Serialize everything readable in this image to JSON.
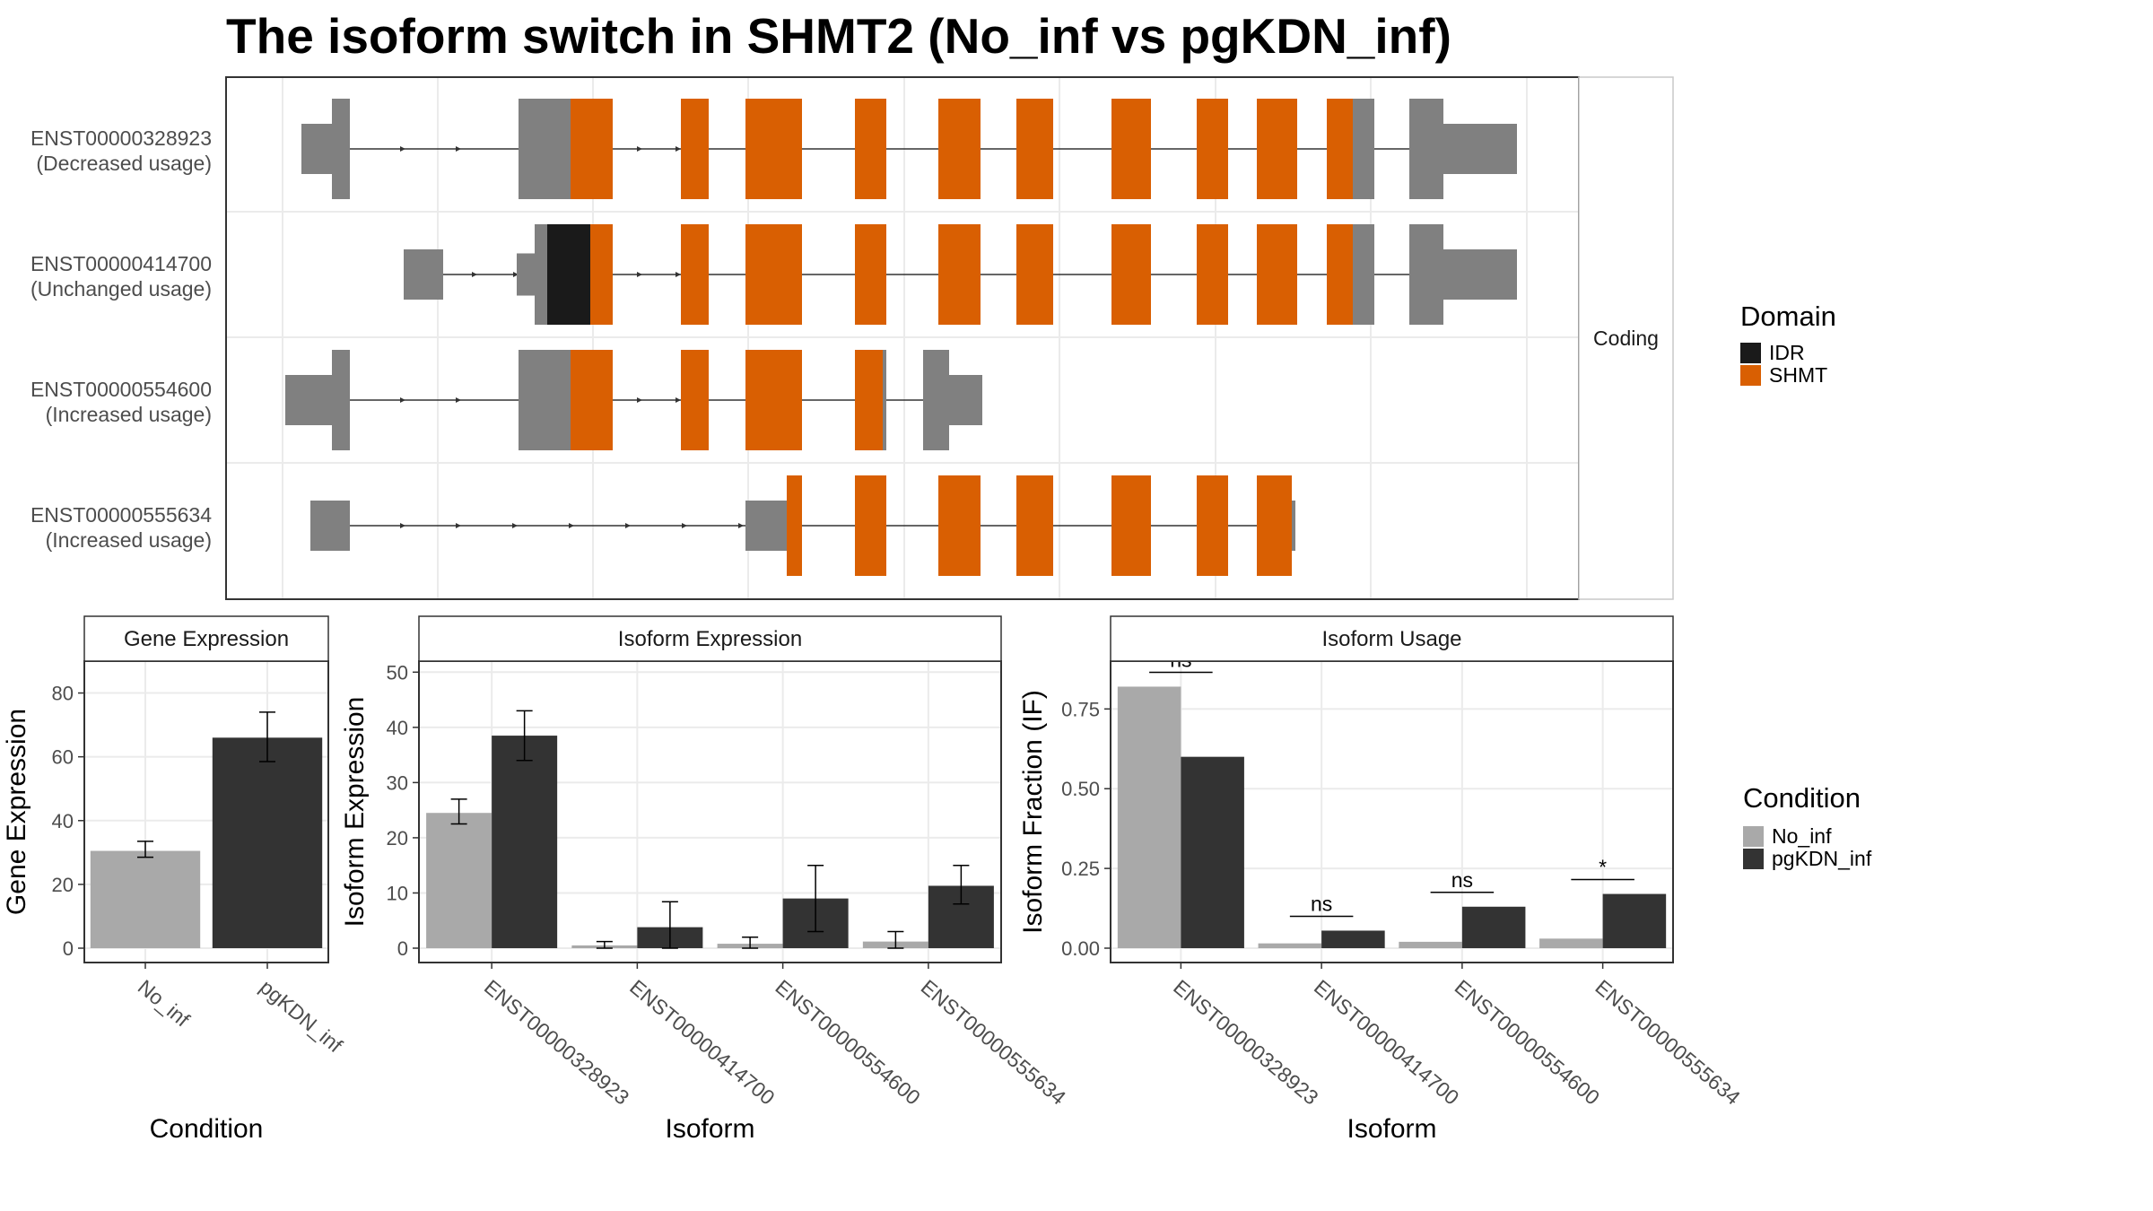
{
  "title": "The isoform switch in SHMT2 (No_inf vs pgKDN_inf)",
  "colors": {
    "no_inf": "#a9a9a9",
    "pgkdn_inf": "#333333",
    "idr": "#1a1a1a",
    "shmt": "#d95f02",
    "noncoding_exon": "#808080"
  },
  "isoform_panel": {
    "strip_label": "Coding",
    "legend": {
      "title": "Domain",
      "items": [
        {
          "label": "IDR",
          "color": "#1a1a1a"
        },
        {
          "label": "SHMT",
          "color": "#d95f02"
        }
      ]
    },
    "tracks": [
      {
        "id": "ENST00000328923",
        "status": "(Decreased usage)"
      },
      {
        "id": "ENST00000414700",
        "status": "(Unchanged usage)"
      },
      {
        "id": "ENST00000554600",
        "status": "(Increased usage)"
      },
      {
        "id": "ENST00000555634",
        "status": "(Increased usage)"
      }
    ]
  },
  "condition_legend": {
    "title": "Condition",
    "items": [
      {
        "label": "No_inf",
        "color": "#a9a9a9"
      },
      {
        "label": "pgKDN_inf",
        "color": "#333333"
      }
    ]
  },
  "chart_data": [
    {
      "type": "bar",
      "title": "Gene Expression",
      "xlabel": "Condition",
      "ylabel": "Gene Expression",
      "ylim": [
        0,
        90
      ],
      "yticks": [
        0,
        20,
        40,
        60,
        80
      ],
      "categories": [
        "No_inf",
        "pgKDN_inf"
      ],
      "values": [
        30.5,
        66
      ],
      "errors": [
        [
          28.5,
          33.5
        ],
        [
          58.5,
          74
        ]
      ]
    },
    {
      "type": "bar",
      "title": "Isoform Expression",
      "xlabel": "Isoform",
      "ylabel": "Isoform Expression",
      "ylim": [
        0,
        52
      ],
      "yticks": [
        0,
        10,
        20,
        30,
        40,
        50
      ],
      "categories": [
        "ENST00000328923",
        "ENST00000414700",
        "ENST00000554600",
        "ENST00000555634"
      ],
      "series": [
        {
          "name": "No_inf",
          "values": [
            24.5,
            0.5,
            0.8,
            1.2
          ],
          "errors": [
            [
              22.5,
              27
            ],
            [
              0,
              1.2
            ],
            [
              0,
              2
            ],
            [
              0,
              3
            ]
          ]
        },
        {
          "name": "pgKDN_inf",
          "values": [
            38.5,
            3.8,
            9,
            11.3
          ],
          "errors": [
            [
              34,
              43
            ],
            [
              0,
              8.4
            ],
            [
              3,
              15
            ],
            [
              8,
              15
            ]
          ]
        }
      ]
    },
    {
      "type": "bar",
      "title": "Isoform Usage",
      "xlabel": "Isoform",
      "ylabel": "Isoform Fraction (IF)",
      "ylim": [
        0,
        0.9
      ],
      "yticks": [
        "0.00",
        "0.25",
        "0.50",
        "0.75"
      ],
      "categories": [
        "ENST00000328923",
        "ENST00000414700",
        "ENST00000554600",
        "ENST00000555634"
      ],
      "series": [
        {
          "name": "No_inf",
          "values": [
            0.82,
            0.015,
            0.02,
            0.03
          ]
        },
        {
          "name": "pgKDN_inf",
          "values": [
            0.6,
            0.055,
            0.13,
            0.17
          ]
        }
      ],
      "significance": [
        "ns",
        "ns",
        "ns",
        "*"
      ]
    }
  ]
}
